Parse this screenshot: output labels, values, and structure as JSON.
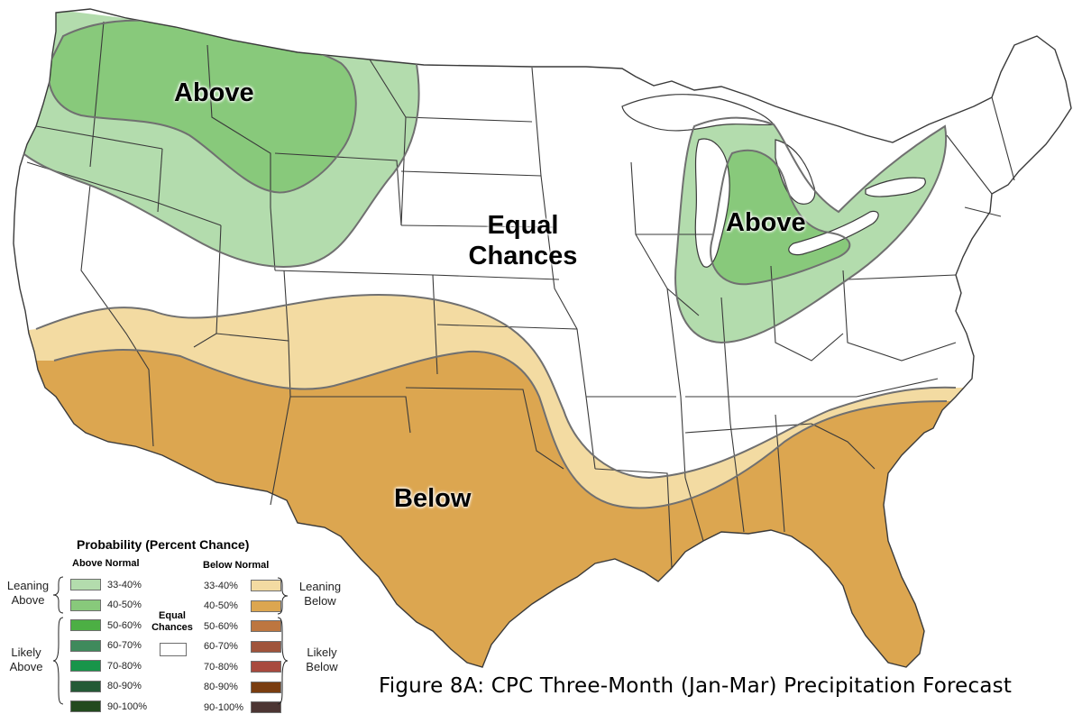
{
  "figure_title": "Figure 8A: CPC Three-Month (Jan-Mar) Precipitation Forecast",
  "map_labels": {
    "above_northwest": "Above",
    "above_great_lakes": "Above",
    "equal_chances": "Equal Chances",
    "below": "Below"
  },
  "legend": {
    "title": "Probability (Percent Chance)",
    "above_header": "Above Normal",
    "below_header": "Below Normal",
    "equal_chances": "Equal Chances",
    "leaning_above": "Leaning Above",
    "likely_above": "Likely Above",
    "leaning_below": "Leaning Below",
    "likely_below": "Likely Below",
    "above_classes": [
      {
        "label": "33-40%",
        "color": "#b3dcad"
      },
      {
        "label": "40-50%",
        "color": "#88c97b"
      },
      {
        "label": "50-60%",
        "color": "#4caf44"
      },
      {
        "label": "60-70%",
        "color": "#3f8a5c"
      },
      {
        "label": "70-80%",
        "color": "#18954a"
      },
      {
        "label": "80-90%",
        "color": "#245a36"
      },
      {
        "label": "90-100%",
        "color": "#234a1e"
      }
    ],
    "below_classes": [
      {
        "label": "33-40%",
        "color": "#f3dba2"
      },
      {
        "label": "40-50%",
        "color": "#dca650"
      },
      {
        "label": "50-60%",
        "color": "#bd7640"
      },
      {
        "label": "60-70%",
        "color": "#a0543b"
      },
      {
        "label": "70-80%",
        "color": "#a84a3e"
      },
      {
        "label": "80-90%",
        "color": "#7a3d10"
      },
      {
        "label": "90-100%",
        "color": "#4c3533"
      }
    ]
  },
  "colors": {
    "above_33_40": "#b3dcad",
    "above_40_50": "#88c97b",
    "below_33_40": "#f3dba2",
    "below_40_50": "#dca650",
    "state_lines": "#3a3a3a",
    "contour_lines": "#707070"
  }
}
